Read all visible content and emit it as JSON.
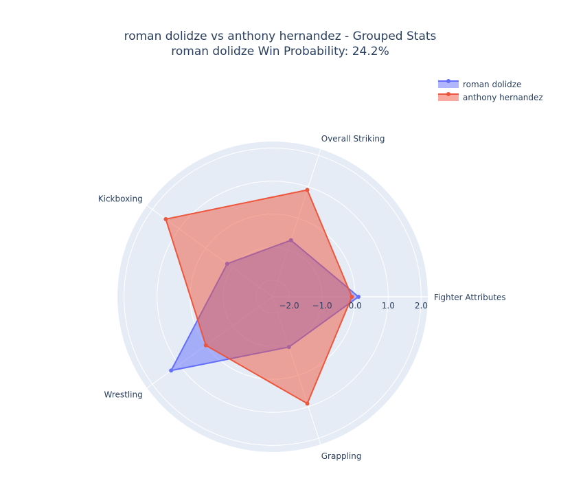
{
  "chart_data": {
    "type": "radar",
    "title_line1": "roman dolidze vs anthony hernandez - Grouped Stats",
    "title_line2": "roman dolidze Win Probability: 24.2%",
    "categories": [
      "Fighter Attributes",
      "Overall Striking",
      "Kickboxing",
      "Wrestling",
      "Grappling"
    ],
    "radial_range": [
      -2.5,
      2.2
    ],
    "radial_ticks": [
      -2.0,
      -1.0,
      0.0,
      1.0,
      2.0
    ],
    "radial_tick_labels": [
      "−2.0",
      "−1.0",
      "0.0",
      "1.0",
      "2.0"
    ],
    "grid": true,
    "legend_position": "top-right",
    "series": [
      {
        "name": "roman dolidze",
        "color": "#636efa",
        "values": [
          0.1,
          -0.7,
          -0.8,
          1.3,
          -0.9
        ]
      },
      {
        "name": "anthony hernandez",
        "color": "#ef553b",
        "values": [
          -0.1,
          0.9,
          1.5,
          0.0,
          0.9
        ]
      }
    ]
  }
}
